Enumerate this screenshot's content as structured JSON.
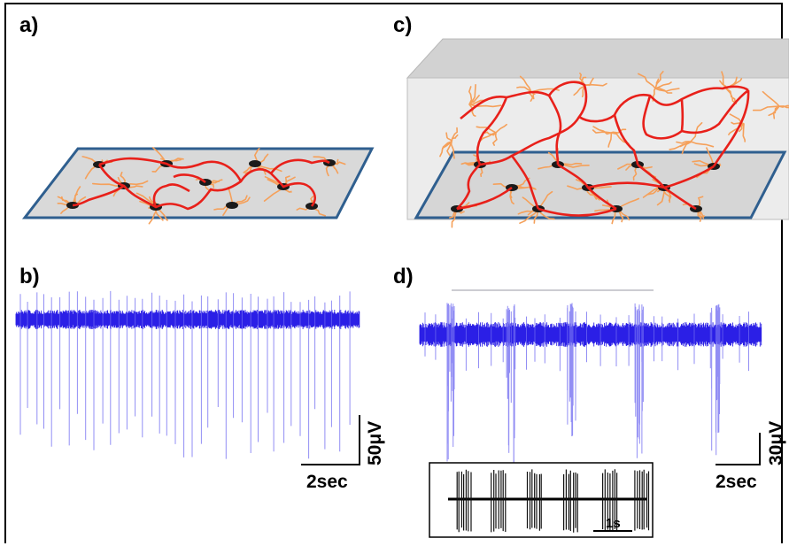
{
  "panels": {
    "a": {
      "label": "a)"
    },
    "b": {
      "label": "b)",
      "time_scale": "2sec",
      "amp_scale": "50μV"
    },
    "c": {
      "label": "c)"
    },
    "d": {
      "label": "d)",
      "time_scale": "2sec",
      "amp_scale": "30μV",
      "inset_scale": "1s"
    }
  },
  "colors": {
    "trace": "#2b1fe6",
    "network": "#e8201a",
    "neurite": "#f5a05a",
    "plate_border": "#2f5f8f",
    "plate_fill": "#d9d9d9",
    "box_fill": "#e6e6e6"
  }
}
